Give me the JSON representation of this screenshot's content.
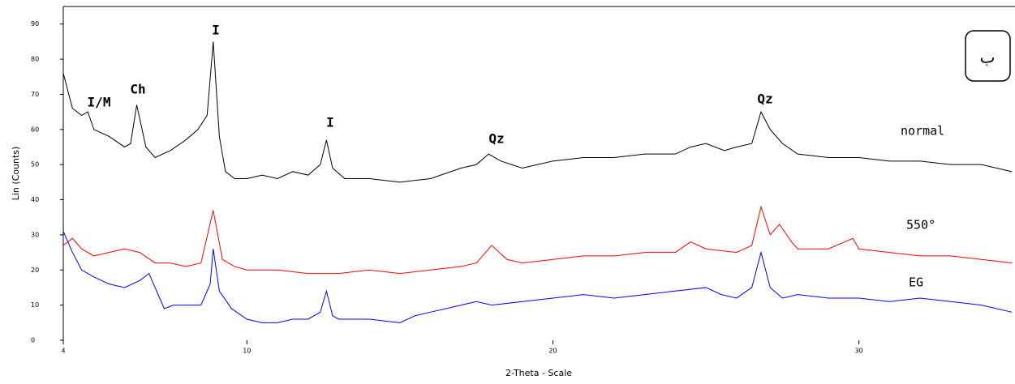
{
  "chart_data": {
    "type": "line",
    "xlabel": "2-Theta - Scale",
    "ylabel": "Lin (Counts)",
    "xlim": [
      4,
      35.1
    ],
    "xticks": [
      4,
      10,
      20,
      30
    ],
    "ylim": [
      0,
      95
    ],
    "yticks": [
      0,
      10,
      20,
      30,
      40,
      50,
      60,
      70,
      80,
      90
    ],
    "annotations": [
      "I/M",
      "Ch",
      "I",
      "I",
      "Qz",
      "Qz"
    ],
    "panel_label": "ب",
    "series": [
      {
        "name": "normal",
        "color": "#000000",
        "x": [
          4,
          4.3,
          4.6,
          4.8,
          5.0,
          5.5,
          6.0,
          6.2,
          6.4,
          6.7,
          7.0,
          7.5,
          8.0,
          8.4,
          8.7,
          8.9,
          9.1,
          9.3,
          9.6,
          10,
          10.5,
          11,
          11.5,
          12,
          12.4,
          12.6,
          12.8,
          13.2,
          14,
          15,
          16,
          17,
          17.5,
          17.9,
          18.3,
          19,
          19.5,
          20,
          21,
          22,
          23,
          24,
          24.5,
          25,
          25.6,
          26,
          26.5,
          26.8,
          27.1,
          27.5,
          28,
          29,
          30,
          31,
          32,
          33,
          34,
          35
        ],
        "values": [
          76,
          66,
          64,
          65,
          60,
          58,
          55,
          56,
          67,
          55,
          52,
          54,
          57,
          60,
          64,
          85,
          58,
          48,
          46,
          46,
          47,
          46,
          48,
          47,
          50,
          57,
          49,
          46,
          46,
          45,
          46,
          49,
          50,
          53,
          51,
          49,
          50,
          51,
          52,
          52,
          53,
          53,
          55,
          56,
          54,
          55,
          56,
          65,
          60,
          56,
          53,
          52,
          52,
          51,
          51,
          50,
          50,
          48
        ]
      },
      {
        "name": "550°",
        "color": "#ff0000",
        "x": [
          4,
          4.3,
          4.6,
          5,
          5.5,
          6,
          6.5,
          7,
          7.5,
          8,
          8.5,
          8.9,
          9.2,
          9.6,
          10,
          11,
          12,
          13,
          14,
          15,
          16,
          17,
          17.5,
          18,
          18.5,
          19,
          20,
          21,
          22,
          23,
          24,
          24.5,
          25,
          26,
          26.5,
          26.8,
          27.1,
          27.4,
          27.8,
          28,
          29,
          29.8,
          30,
          31,
          32,
          33,
          34,
          35
        ],
        "values": [
          27,
          29,
          26,
          24,
          25,
          26,
          25,
          22,
          22,
          21,
          22,
          37,
          23,
          21,
          20,
          20,
          19,
          19,
          20,
          19,
          20,
          21,
          22,
          27,
          23,
          22,
          23,
          24,
          24,
          25,
          25,
          28,
          26,
          25,
          27,
          38,
          30,
          33,
          28,
          26,
          26,
          29,
          26,
          25,
          24,
          24,
          23,
          22
        ]
      },
      {
        "name": "EG",
        "color": "#0000ff",
        "x": [
          4,
          4.3,
          4.6,
          5,
          5.5,
          6,
          6.5,
          6.8,
          7.1,
          7.3,
          7.6,
          8,
          8.5,
          8.8,
          8.9,
          9.1,
          9.5,
          10,
          10.5,
          11,
          11.5,
          12,
          12.4,
          12.6,
          12.8,
          13,
          14,
          15,
          15.5,
          16,
          17,
          17.5,
          18,
          19,
          20,
          21,
          22,
          23,
          24,
          25,
          25.5,
          26,
          26.5,
          26.8,
          27.1,
          27.5,
          28,
          29,
          30,
          31,
          32,
          33,
          34,
          35
        ],
        "values": [
          31,
          25,
          20,
          18,
          16,
          15,
          17,
          19,
          13,
          9,
          10,
          10,
          10,
          16,
          26,
          14,
          9,
          6,
          5,
          5,
          6,
          6,
          8,
          14,
          7,
          6,
          6,
          5,
          7,
          8,
          10,
          11,
          10,
          11,
          12,
          13,
          12,
          13,
          14,
          15,
          13,
          12,
          15,
          25,
          15,
          12,
          13,
          12,
          12,
          11,
          12,
          11,
          10,
          8
        ]
      }
    ]
  }
}
